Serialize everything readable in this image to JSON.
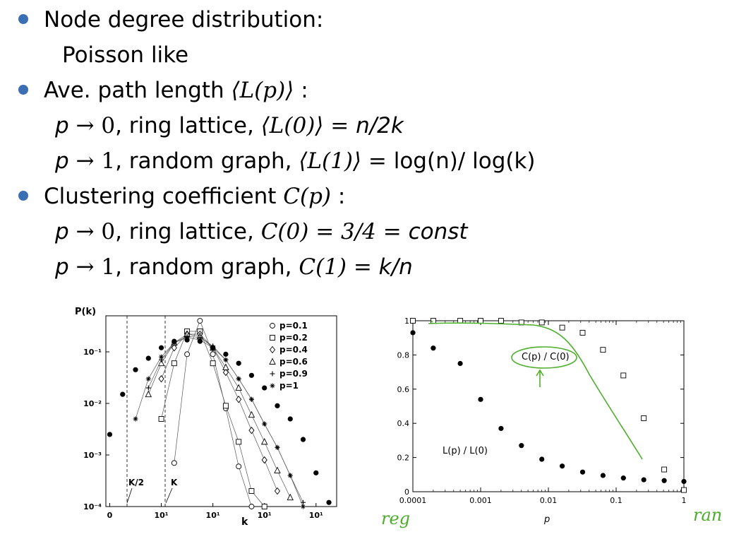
{
  "bullets": {
    "b1": "Node degree distribution:",
    "b1_sub": "Poisson like",
    "b2": {
      "lead": "Ave. path length",
      "sym": "⟨L(p)⟩",
      "tail": " :"
    },
    "b2_l1": {
      "p": "p",
      "arrow": " → 0",
      "text": ", ring lattice, ",
      "math": "⟨L(0)⟩ = ",
      "val": "n/2k"
    },
    "b2_l2": {
      "p": "p",
      "arrow": " → 1",
      "text": ", random graph, ",
      "math": "⟨L(1)⟩ = ",
      "val": "log(n)/ log(k)"
    },
    "b3": {
      "lead": "Clustering coefficient ",
      "sym": "C(p)",
      "tail": " :"
    },
    "b3_l1": {
      "p": "p",
      "arrow": " → 0",
      "text": ", ring lattice, ",
      "math": "C(0) = 3/4 = ",
      "val": "const"
    },
    "b3_l2": {
      "p": "p",
      "arrow": " → 1",
      "text": ", random graph, ",
      "math": "C(1) = ",
      "val": "k/n"
    }
  },
  "chart_data": [
    {
      "type": "line",
      "ylabel": "P(k)",
      "xlabel": "k",
      "yscale": "log",
      "ylim": [
        0.0001,
        0.5
      ],
      "x_tick_labels": [
        "0",
        "10¹",
        "10¹",
        "10¹",
        "10¹"
      ],
      "y_tick_labels": [
        "10⁻¹",
        "10⁻²",
        "10⁻³",
        "10⁻⁴"
      ],
      "annotations": [
        "K/2",
        "K"
      ],
      "legend_position": "top-right",
      "series": [
        {
          "name": "p=0.1",
          "marker": "circle",
          "x": [
            5,
            6,
            7,
            8,
            9,
            10,
            11
          ],
          "y": [
            0.0007,
            0.09,
            0.4,
            0.09,
            0.008,
            0.0006,
            0.0001
          ]
        },
        {
          "name": "p=0.2",
          "marker": "square",
          "x": [
            4,
            5,
            6,
            7,
            8,
            9,
            10,
            11,
            12
          ],
          "y": [
            0.005,
            0.06,
            0.25,
            0.25,
            0.06,
            0.009,
            0.0018,
            0.0002,
            0.0001
          ]
        },
        {
          "name": "p=0.4",
          "marker": "diamond",
          "x": [
            4,
            5,
            6,
            7,
            8,
            9,
            10,
            11,
            12,
            13
          ],
          "y": [
            0.03,
            0.12,
            0.22,
            0.22,
            0.12,
            0.04,
            0.012,
            0.003,
            0.0008,
            0.0002
          ]
        },
        {
          "name": "p=0.6",
          "marker": "triangle",
          "x": [
            3,
            4,
            5,
            6,
            7,
            8,
            9,
            10,
            11,
            12,
            13,
            14
          ],
          "y": [
            0.015,
            0.06,
            0.15,
            0.22,
            0.2,
            0.12,
            0.05,
            0.02,
            0.006,
            0.0018,
            0.0005,
            0.00015
          ]
        },
        {
          "name": "p=0.9",
          "marker": "plus",
          "x": [
            3,
            4,
            5,
            6,
            7,
            8,
            9,
            10,
            11,
            12,
            13,
            14,
            15
          ],
          "y": [
            0.02,
            0.07,
            0.15,
            0.2,
            0.19,
            0.13,
            0.07,
            0.03,
            0.012,
            0.004,
            0.0014,
            0.0004,
            0.00012
          ]
        },
        {
          "name": "p=1",
          "marker": "star",
          "x": [
            2,
            3,
            4,
            5,
            6,
            7,
            8,
            9,
            10,
            11,
            12,
            13,
            14,
            15
          ],
          "y": [
            0.005,
            0.03,
            0.08,
            0.15,
            0.19,
            0.17,
            0.12,
            0.07,
            0.03,
            0.012,
            0.004,
            0.0014,
            0.0004,
            0.0001
          ]
        },
        {
          "name": "",
          "marker": "filled",
          "x": [
            0,
            1,
            2,
            3,
            4,
            5,
            6,
            7,
            8,
            9,
            10,
            11,
            12,
            13,
            14,
            15,
            16,
            17
          ],
          "y": [
            0.0025,
            0.015,
            0.045,
            0.075,
            0.12,
            0.16,
            0.17,
            0.16,
            0.12,
            0.09,
            0.06,
            0.035,
            0.02,
            0.009,
            0.005,
            0.002,
            0.00045,
            0.00012
          ]
        }
      ]
    },
    {
      "type": "scatter",
      "xlabel": "p",
      "xscale": "log",
      "xlim": [
        0.0001,
        1
      ],
      "ylim": [
        0,
        1
      ],
      "x_tick_labels": [
        "0.0001",
        "0.001",
        "0.01",
        "0.1",
        "1"
      ],
      "y_tick_labels": [
        "0",
        "0.2",
        "0.4",
        "0.6",
        "0.8",
        "1"
      ],
      "annotations": [
        "C(p) / C(0)",
        "L(p) / L(0)"
      ],
      "series": [
        {
          "name": "C(p) / C(0)",
          "marker": "square",
          "x": [
            0.0001,
            0.0002,
            0.0005,
            0.001,
            0.002,
            0.004,
            0.008,
            0.016,
            0.032,
            0.064,
            0.128,
            0.256,
            0.512,
            1
          ],
          "y": [
            1,
            1,
            1,
            1,
            1,
            0.99,
            0.99,
            0.96,
            0.93,
            0.83,
            0.68,
            0.43,
            0.13,
            0.01
          ]
        },
        {
          "name": "L(p) / L(0)",
          "marker": "filled",
          "x": [
            0.0001,
            0.0002,
            0.0005,
            0.001,
            0.002,
            0.004,
            0.008,
            0.016,
            0.032,
            0.064,
            0.128,
            0.256,
            0.512,
            1
          ],
          "y": [
            0.93,
            0.84,
            0.75,
            0.54,
            0.37,
            0.27,
            0.19,
            0.15,
            0.115,
            0.095,
            0.08,
            0.07,
            0.065,
            0.06
          ]
        }
      ]
    }
  ],
  "handwriting": {
    "left": "reg",
    "right": "ran",
    "color": "#4caf2a"
  }
}
